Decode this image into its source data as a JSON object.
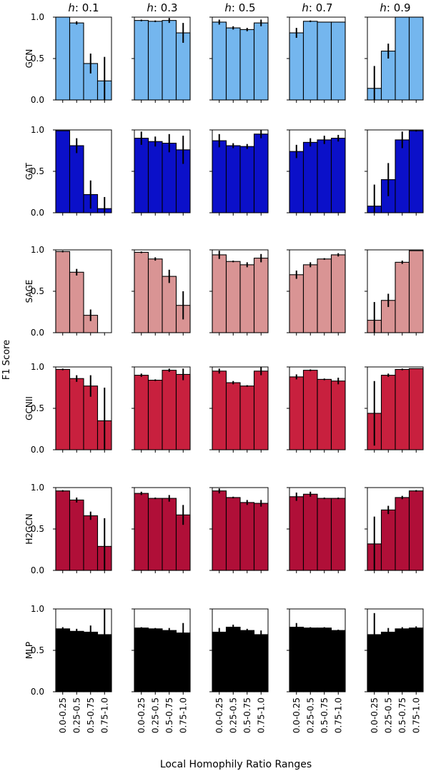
{
  "chart_data": {
    "type": "bar",
    "categories": [
      "0.0-0.25",
      "0.25-0.5",
      "0.5-0.75",
      "0.75-1.0"
    ],
    "column_prefix": "h",
    "columns": [
      ": 0.1",
      ": 0.3",
      ": 0.5",
      ": 0.7",
      ": 0.9"
    ],
    "xlabel": "Local Homophily Ratio Ranges",
    "ylabel": "F1 Score",
    "ylim": [
      0,
      1
    ],
    "yticks": [
      "0.0",
      "0.5",
      "1.0"
    ],
    "rows": [
      {
        "name": "GCN",
        "color": "#74b6ee",
        "values": [
          [
            1.0,
            0.93,
            0.44,
            0.23
          ],
          [
            0.96,
            0.95,
            0.96,
            0.81
          ],
          [
            0.94,
            0.87,
            0.85,
            0.93
          ],
          [
            0.81,
            0.95,
            0.94,
            0.94
          ],
          [
            0.14,
            0.59,
            1.0,
            1.0
          ]
        ],
        "errors": [
          [
            0.0,
            0.02,
            0.12,
            0.29
          ],
          [
            0.01,
            0.01,
            0.03,
            0.12
          ],
          [
            0.03,
            0.02,
            0.02,
            0.04
          ],
          [
            0.06,
            0.01,
            0.0,
            0.0
          ],
          [
            0.27,
            0.09,
            0.0,
            0.0
          ]
        ]
      },
      {
        "name": "GAT",
        "color": "#0b10c9",
        "values": [
          [
            0.99,
            0.81,
            0.22,
            0.05
          ],
          [
            0.9,
            0.86,
            0.84,
            0.76
          ],
          [
            0.87,
            0.81,
            0.8,
            0.95
          ],
          [
            0.74,
            0.85,
            0.88,
            0.9
          ],
          [
            0.08,
            0.4,
            0.88,
            0.99
          ]
        ],
        "errors": [
          [
            0.0,
            0.09,
            0.17,
            0.14
          ],
          [
            0.08,
            0.06,
            0.11,
            0.17
          ],
          [
            0.08,
            0.03,
            0.03,
            0.05
          ],
          [
            0.08,
            0.05,
            0.05,
            0.04
          ],
          [
            0.26,
            0.2,
            0.1,
            0.01
          ]
        ]
      },
      {
        "name": "SAGE",
        "color": "#d99494",
        "values": [
          [
            0.98,
            0.73,
            0.21,
            0.0
          ],
          [
            0.97,
            0.89,
            0.68,
            0.33
          ],
          [
            0.94,
            0.86,
            0.82,
            0.9
          ],
          [
            0.7,
            0.82,
            0.89,
            0.94
          ],
          [
            0.15,
            0.39,
            0.85,
            0.99
          ]
        ],
        "errors": [
          [
            0.01,
            0.04,
            0.07,
            0.0
          ],
          [
            0.01,
            0.02,
            0.08,
            0.17
          ],
          [
            0.05,
            0.01,
            0.03,
            0.05
          ],
          [
            0.05,
            0.03,
            0.01,
            0.02
          ],
          [
            0.22,
            0.08,
            0.02,
            0.0
          ]
        ]
      },
      {
        "name": "GCNII",
        "color": "#c8203e",
        "values": [
          [
            0.97,
            0.86,
            0.77,
            0.35
          ],
          [
            0.9,
            0.84,
            0.96,
            0.91
          ],
          [
            0.95,
            0.81,
            0.77,
            0.95
          ],
          [
            0.88,
            0.96,
            0.85,
            0.83
          ],
          [
            0.44,
            0.9,
            0.97,
            0.98
          ]
        ],
        "errors": [
          [
            0.01,
            0.04,
            0.13,
            0.4
          ],
          [
            0.02,
            0.01,
            0.02,
            0.07
          ],
          [
            0.03,
            0.02,
            0.01,
            0.05
          ],
          [
            0.03,
            0.01,
            0.01,
            0.04
          ],
          [
            0.39,
            0.02,
            0.01,
            0.0
          ]
        ]
      },
      {
        "name": "H2GCN",
        "color": "#b00f38",
        "values": [
          [
            0.96,
            0.85,
            0.66,
            0.29
          ],
          [
            0.93,
            0.87,
            0.87,
            0.67
          ],
          [
            0.96,
            0.88,
            0.82,
            0.81
          ],
          [
            0.89,
            0.92,
            0.87,
            0.87
          ],
          [
            0.32,
            0.73,
            0.88,
            0.96
          ]
        ],
        "errors": [
          [
            0.01,
            0.03,
            0.05,
            0.34
          ],
          [
            0.02,
            0.01,
            0.04,
            0.12
          ],
          [
            0.03,
            0.01,
            0.03,
            0.04
          ],
          [
            0.05,
            0.03,
            0.01,
            0.01
          ],
          [
            0.33,
            0.05,
            0.02,
            0.01
          ]
        ]
      },
      {
        "name": "MLP",
        "color": "#000000",
        "values": [
          [
            0.76,
            0.73,
            0.72,
            0.69
          ],
          [
            0.77,
            0.76,
            0.74,
            0.71
          ],
          [
            0.72,
            0.78,
            0.74,
            0.69
          ],
          [
            0.78,
            0.77,
            0.77,
            0.74
          ],
          [
            0.69,
            0.72,
            0.76,
            0.77
          ]
        ],
        "errors": [
          [
            0.02,
            0.03,
            0.08,
            0.32
          ],
          [
            0.01,
            0.01,
            0.03,
            0.12
          ],
          [
            0.05,
            0.03,
            0.02,
            0.05
          ],
          [
            0.05,
            0.01,
            0.01,
            0.01
          ],
          [
            0.26,
            0.05,
            0.02,
            0.02
          ]
        ]
      }
    ]
  }
}
